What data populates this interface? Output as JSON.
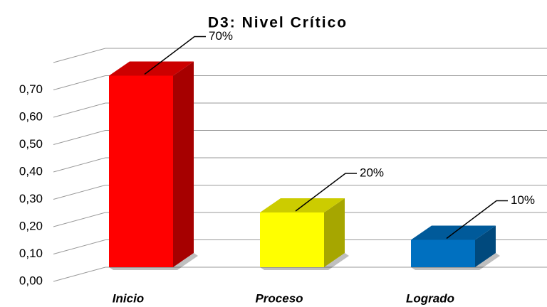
{
  "chart_data": {
    "type": "bar3d",
    "title": "D3: Nivel Crítico",
    "categories": [
      "Inicio",
      "Proceso",
      "Logrado"
    ],
    "values": [
      0.7,
      0.2,
      0.1
    ],
    "value_labels": [
      "70%",
      "20%",
      "10%"
    ],
    "colors": [
      "#ff0000",
      "#ffff00",
      "#0070c0"
    ],
    "ylim": [
      0,
      0.8
    ],
    "yticks": [
      {
        "value": 0,
        "label": "0,00"
      },
      {
        "value": 0.1,
        "label": "0,10"
      },
      {
        "value": 0.2,
        "label": "0,20"
      },
      {
        "value": 0.3,
        "label": "0,30"
      },
      {
        "value": 0.4,
        "label": "0,40"
      },
      {
        "value": 0.5,
        "label": "0,50"
      },
      {
        "value": 0.6,
        "label": "0,60"
      },
      {
        "value": 0.7,
        "label": "0,70"
      }
    ],
    "grid": true
  }
}
